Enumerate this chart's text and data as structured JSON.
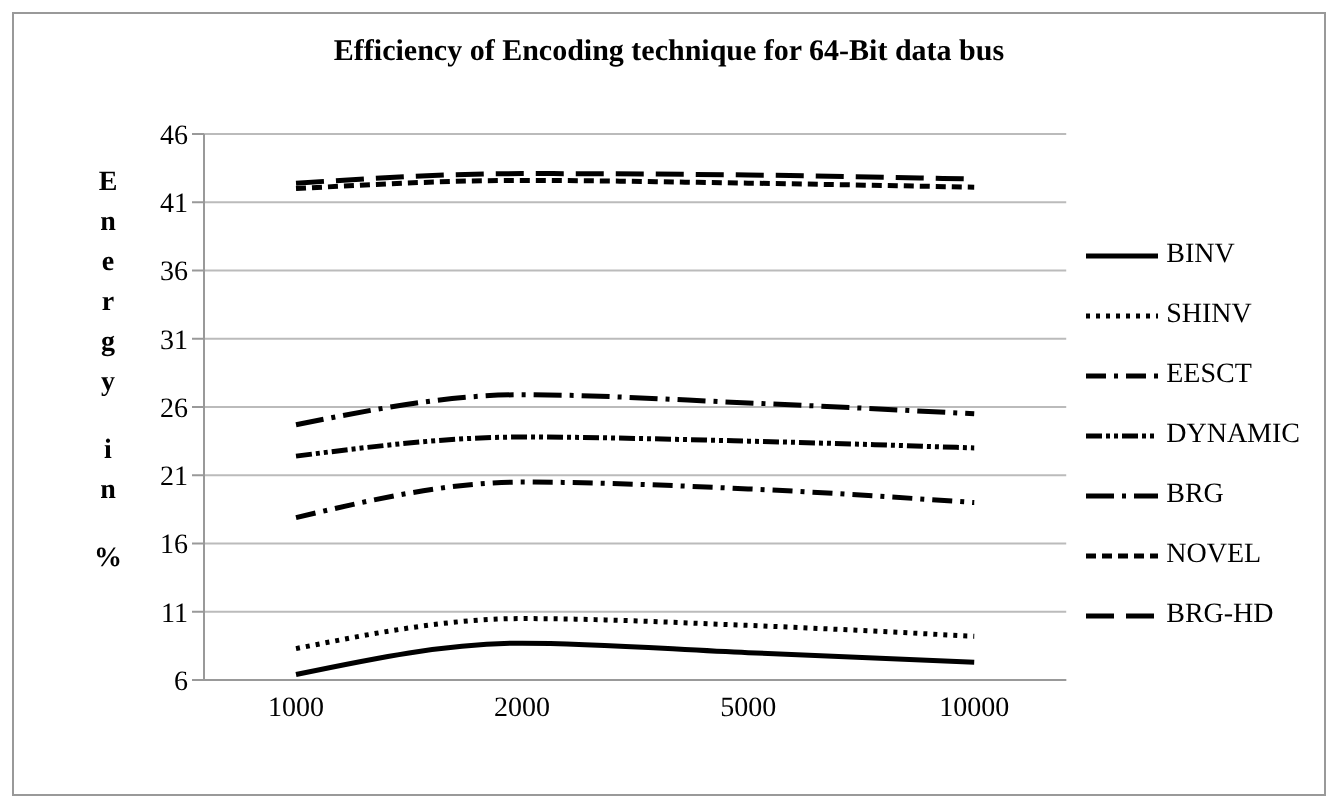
{
  "chart_data": {
    "type": "line",
    "title": "Efficiency of Encoding technique for 64-Bit data bus",
    "ylabel": "Energy in %",
    "categories": [
      "1000",
      "2000",
      "5000",
      "10000"
    ],
    "series": [
      {
        "name": "BINV",
        "color": "#000000",
        "line_style": "solid",
        "values": [
          6.4,
          8.7,
          8.0,
          7.3
        ]
      },
      {
        "name": "SHINV",
        "color": "#000000",
        "line_style": "dotted",
        "values": [
          8.3,
          10.5,
          10.0,
          9.2
        ]
      },
      {
        "name": "EESCT",
        "color": "#000000",
        "line_style": "dashdot",
        "values": [
          17.9,
          20.5,
          20.0,
          19.0
        ]
      },
      {
        "name": "DYNAMIC",
        "color": "#000000",
        "line_style": "dashdotdot",
        "values": [
          22.4,
          23.8,
          23.5,
          23.0
        ]
      },
      {
        "name": "BRG",
        "color": "#000000",
        "line_style": "longdashdot",
        "values": [
          24.7,
          26.9,
          26.3,
          25.5
        ]
      },
      {
        "name": "NOVEL",
        "color": "#000000",
        "line_style": "dashed",
        "values": [
          42.0,
          42.6,
          42.4,
          42.1
        ]
      },
      {
        "name": "BRG-HD",
        "color": "#000000",
        "line_style": "longdash",
        "values": [
          42.4,
          43.1,
          43.0,
          42.7
        ]
      }
    ],
    "ylim": [
      6,
      46
    ],
    "yticks": [
      6,
      11,
      16,
      21,
      26,
      31,
      36,
      41,
      46
    ],
    "grid": "y",
    "legend": "right",
    "marker": "none"
  }
}
